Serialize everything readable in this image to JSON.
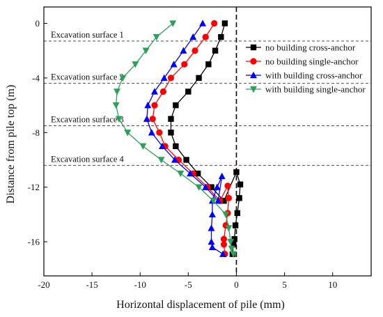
{
  "chart_data": {
    "type": "line",
    "xlabel": "Horizontal displacement of pile (mm)",
    "ylabel": "Distance from pile top (m)",
    "xlim": [
      -20,
      14
    ],
    "ylim": [
      -18.5,
      1.2
    ],
    "x_ticks": [
      -20,
      -15,
      -10,
      -5,
      0,
      5,
      10
    ],
    "y_ticks": [
      0,
      -4,
      -8,
      -12,
      -16
    ],
    "legend_position": "top-right",
    "annotations": [
      {
        "text": "Excavation surface 1",
        "y": -1.3
      },
      {
        "text": "Excavation surface 2",
        "y": -4.4
      },
      {
        "text": "Excavation surface 3",
        "y": -7.5
      },
      {
        "text": "Excavation surface 4",
        "y": -10.4
      }
    ],
    "zero_line": {
      "x": 0,
      "style": "dashed"
    },
    "series": [
      {
        "name": "no building cross-anchor",
        "color": "#000000",
        "marker": "square",
        "x": [
          -1.2,
          -1.6,
          -2.2,
          -2.9,
          -3.9,
          -5.0,
          -6.3,
          -6.8,
          -6.8,
          -6.3,
          -5.2,
          -4.0,
          -2.6,
          -1.3,
          0.0,
          0.4,
          0.3,
          0.1,
          -0.1,
          -0.2,
          -0.3,
          -0.4
        ],
        "y": [
          0.0,
          -1.0,
          -2.0,
          -3.0,
          -4.0,
          -5.0,
          -6.0,
          -7.0,
          -8.0,
          -9.0,
          -10.0,
          -11.0,
          -12.0,
          -13.0,
          -10.9,
          -11.8,
          -12.8,
          -13.9,
          -14.8,
          -15.8,
          -16.2,
          -16.9
        ]
      },
      {
        "name": "no building single-anchor",
        "color": "#ff0000",
        "marker": "circle",
        "x": [
          -2.3,
          -3.2,
          -4.3,
          -5.4,
          -6.8,
          -7.6,
          -8.5,
          -8.7,
          -8.0,
          -7.4,
          -6.0,
          -4.5,
          -3.0,
          -1.7,
          -0.9,
          -0.8,
          -0.9,
          -1.1,
          -1.3,
          -1.3,
          -1.2
        ],
        "y": [
          0.0,
          -1.0,
          -2.0,
          -3.0,
          -4.0,
          -5.0,
          -6.0,
          -7.0,
          -8.0,
          -9.0,
          -10.0,
          -11.0,
          -12.0,
          -13.0,
          -11.9,
          -12.8,
          -13.9,
          -14.8,
          -15.8,
          -16.2,
          -16.9
        ]
      },
      {
        "name": "with building cross-anchor",
        "color": "#0000ff",
        "marker": "triangle-up",
        "x": [
          -3.5,
          -4.5,
          -5.5,
          -6.5,
          -7.5,
          -8.5,
          -9.2,
          -9.3,
          -8.8,
          -7.7,
          -6.4,
          -4.8,
          -3.2,
          -1.9,
          -1.5,
          -2.0,
          -2.5,
          -2.5,
          -2.6,
          -2.6,
          -2.5,
          -1.4
        ],
        "y": [
          0.0,
          -1.0,
          -2.0,
          -3.0,
          -4.0,
          -5.0,
          -6.0,
          -7.0,
          -8.0,
          -9.0,
          -10.0,
          -11.0,
          -12.0,
          -13.0,
          -11.2,
          -12.0,
          -13.0,
          -14.0,
          -15.0,
          -16.0,
          -16.4,
          -16.9
        ]
      },
      {
        "name": "with building single-anchor",
        "color": "#2ca05a",
        "marker": "triangle-down",
        "x": [
          -6.6,
          -8.3,
          -9.4,
          -10.5,
          -11.8,
          -12.4,
          -12.5,
          -12.2,
          -11.3,
          -9.7,
          -7.8,
          -5.8,
          -3.9,
          -2.4,
          -1.1,
          -0.8,
          -0.6,
          -0.5,
          -0.3
        ],
        "y": [
          0.0,
          -1.0,
          -2.0,
          -3.0,
          -4.0,
          -5.0,
          -6.0,
          -7.0,
          -8.0,
          -9.0,
          -10.0,
          -11.0,
          -12.0,
          -13.0,
          -14.0,
          -15.0,
          -16.0,
          -16.5,
          -16.9
        ]
      }
    ]
  }
}
